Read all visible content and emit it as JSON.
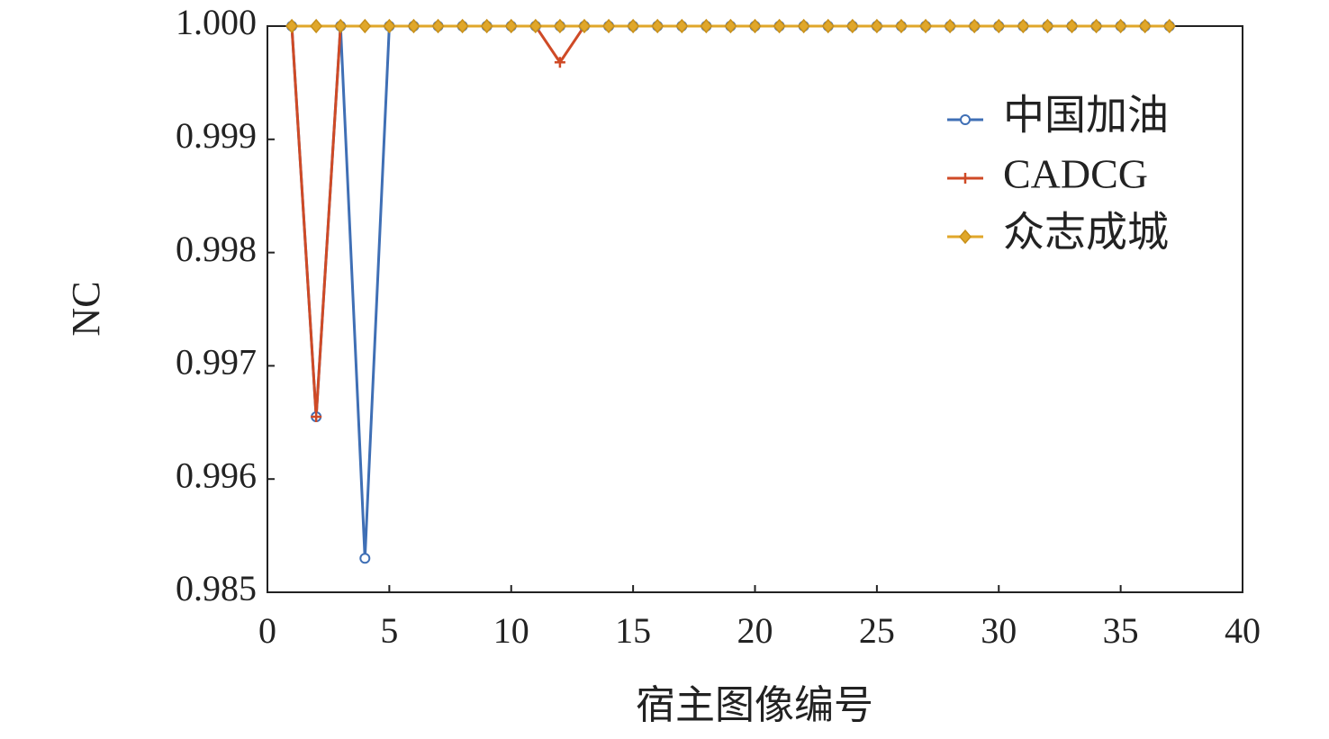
{
  "chart_data": {
    "type": "line",
    "x_label": "宿主图像编号",
    "y_label": "NC",
    "x": [
      1,
      2,
      3,
      4,
      5,
      6,
      7,
      8,
      9,
      10,
      11,
      12,
      13,
      14,
      15,
      16,
      17,
      18,
      19,
      20,
      21,
      22,
      23,
      24,
      25,
      26,
      27,
      28,
      29,
      30,
      31,
      32,
      33,
      34,
      35,
      36,
      37
    ],
    "series": [
      {
        "name": "中国加油",
        "color": "#3f6fb5",
        "marker": "circle",
        "values": [
          1,
          0.99655,
          1,
          0.9883,
          1,
          1,
          1,
          1,
          1,
          1,
          1,
          1,
          1,
          1,
          1,
          1,
          1,
          1,
          1,
          1,
          1,
          1,
          1,
          1,
          1,
          1,
          1,
          1,
          1,
          1,
          1,
          1,
          1,
          1,
          1,
          1,
          1
        ]
      },
      {
        "name": "CADCG",
        "color": "#cf4a26",
        "marker": "plus",
        "values": [
          1,
          0.99655,
          1,
          1,
          1,
          1,
          1,
          1,
          1,
          1,
          1,
          0.99968,
          1,
          1,
          1,
          1,
          1,
          1,
          1,
          1,
          1,
          1,
          1,
          1,
          1,
          1,
          1,
          1,
          1,
          1,
          1,
          1,
          1,
          1,
          1,
          1,
          1
        ]
      },
      {
        "name": "众志成城",
        "color": "#e0a72a",
        "marker": "diamond",
        "values": [
          1,
          1,
          1,
          1,
          1,
          1,
          1,
          1,
          1,
          1,
          1,
          1,
          1,
          1,
          1,
          1,
          1,
          1,
          1,
          1,
          1,
          1,
          1,
          1,
          1,
          1,
          1,
          1,
          1,
          1,
          1,
          1,
          1,
          1,
          1,
          1,
          1
        ]
      }
    ],
    "xlim": [
      0,
      40
    ],
    "xticks": [
      0,
      5,
      10,
      15,
      20,
      25,
      30,
      35,
      40
    ],
    "ylim": [
      0.985,
      1
    ],
    "y_scale": "broken",
    "yticks": [
      0.985,
      0.996,
      0.997,
      0.998,
      0.999,
      {
        "value": 1,
        "label": "1.000"
      }
    ],
    "legend": "upper right",
    "grid": false
  }
}
